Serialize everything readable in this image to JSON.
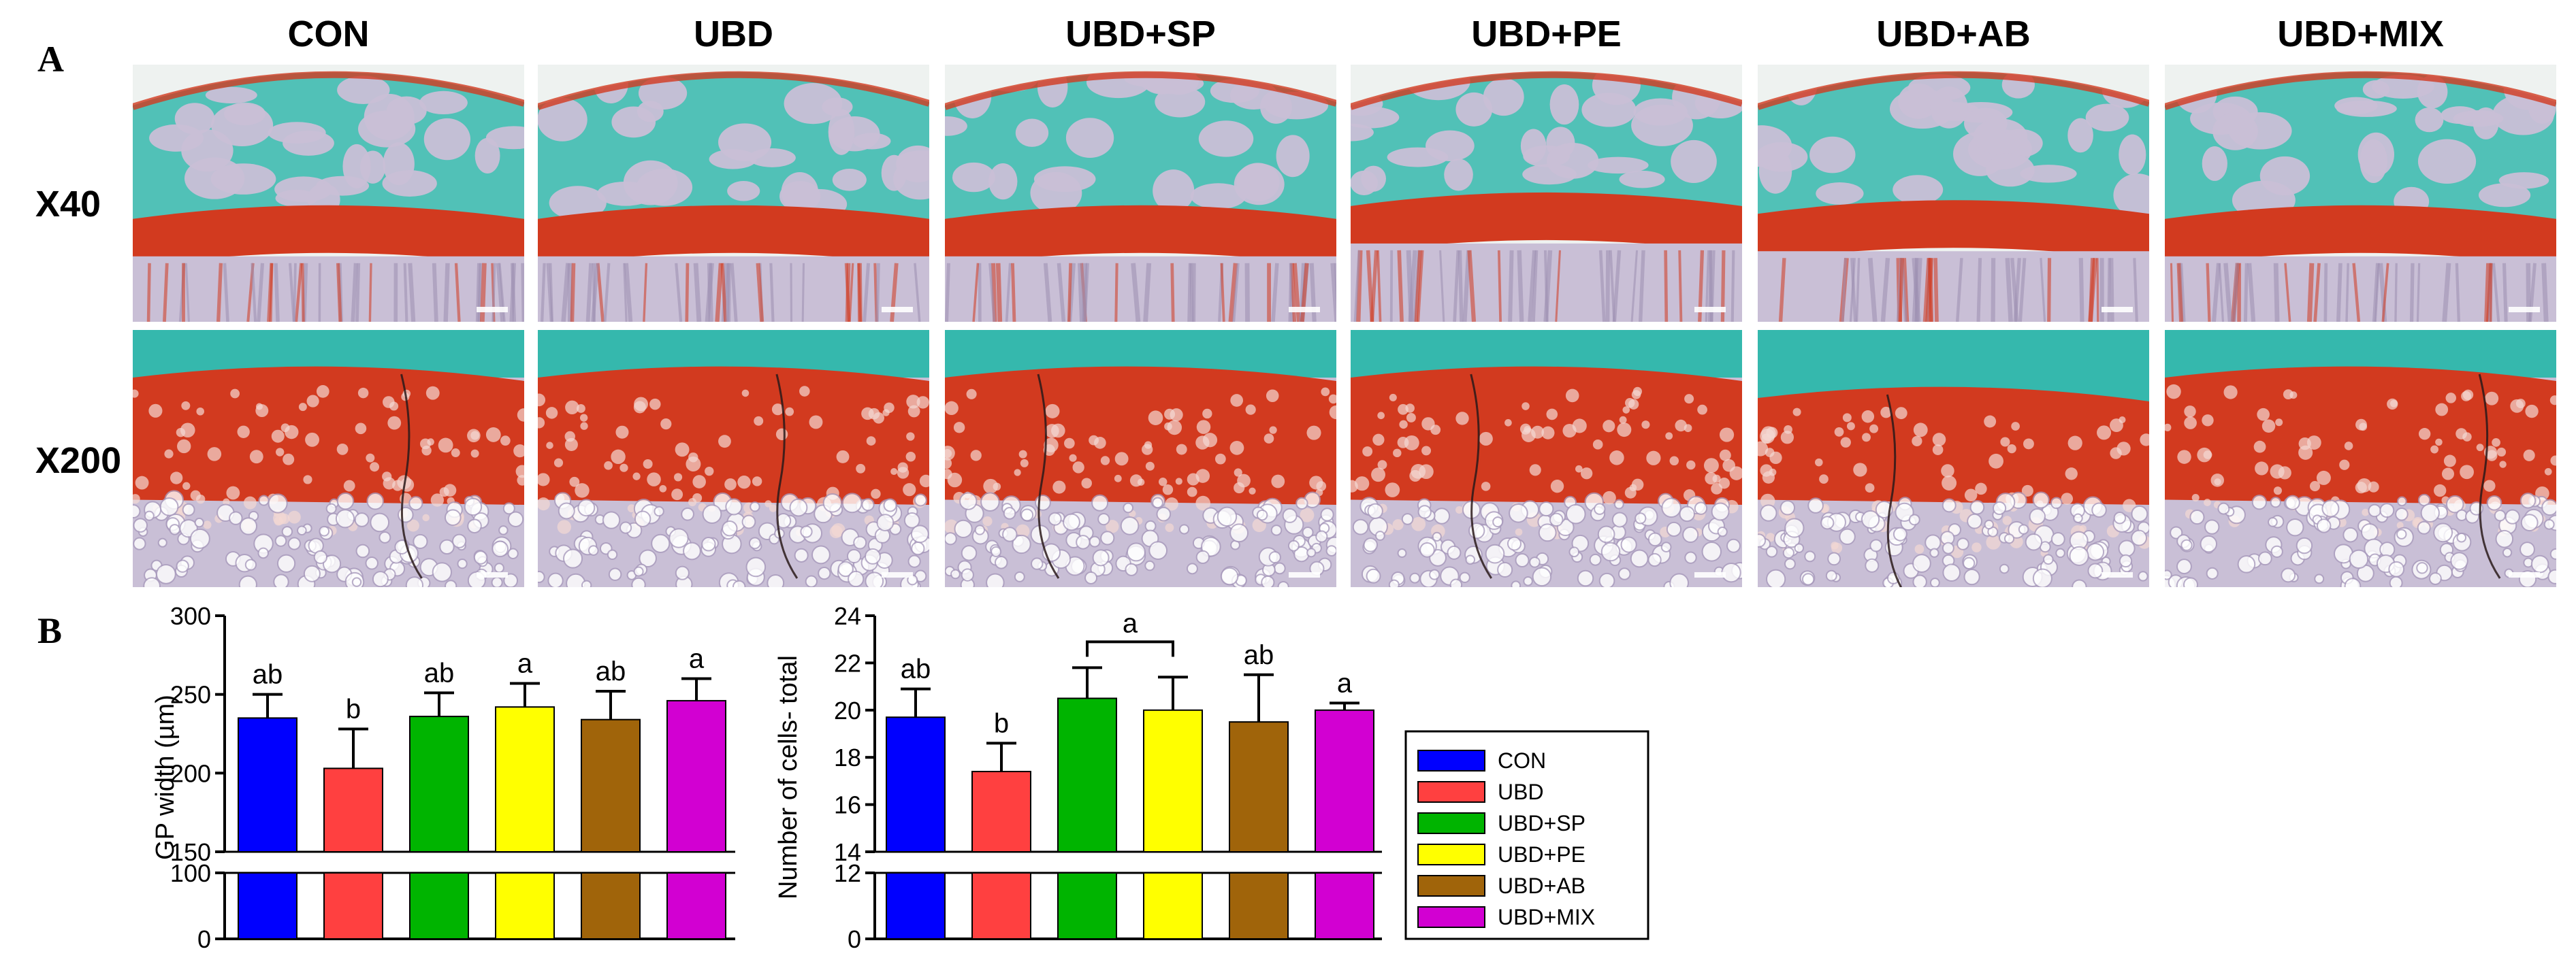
{
  "panel_a": {
    "label": "A",
    "column_titles": [
      "CON",
      "UBD",
      "UBD+SP",
      "UBD+PE",
      "UBD+AB",
      "UBD+MIX"
    ],
    "row_labels": [
      "X40",
      "X200"
    ],
    "stain_colors": {
      "cartilage_red": "#d23a1f",
      "bone_teal": "#35b8ad",
      "marrow_lavender": "#c9bfd6",
      "paper": "#eef2f0"
    }
  },
  "panel_b": {
    "label": "B",
    "legend": {
      "placement": "right",
      "entries": [
        "CON",
        "UBD",
        "UBD+SP",
        "UBD+PE",
        "UBD+AB",
        "UBD+MIX"
      ]
    }
  },
  "colors": {
    "CON": "#0000ff",
    "UBD": "#ff4040",
    "UBD+SP": "#00b400",
    "UBD+PE": "#ffff00",
    "UBD+AB": "#a0640a",
    "UBD+MIX": "#d200d2"
  },
  "chart_data": [
    {
      "type": "bar",
      "ylabel": "GP width (µm)",
      "categories": [
        "CON",
        "UBD",
        "UBD+SP",
        "UBD+PE",
        "UBD+AB",
        "UBD+MIX"
      ],
      "values": [
        235,
        203,
        236,
        242,
        234,
        246
      ],
      "errors": [
        15,
        25,
        15,
        15,
        18,
        14
      ],
      "significance_letters": [
        "ab",
        "b",
        "ab",
        "a",
        "ab",
        "a"
      ],
      "axis_break": true,
      "ylim_lower": [
        0,
        100
      ],
      "ylim_upper": [
        150,
        300
      ],
      "yticks_lower": [
        "0",
        "100"
      ],
      "yticks_upper": [
        "150",
        "200",
        "250",
        "300"
      ],
      "grid": false
    },
    {
      "type": "bar",
      "ylabel": "Number of cells- total",
      "categories": [
        "CON",
        "UBD",
        "UBD+SP",
        "UBD+PE",
        "UBD+AB",
        "UBD+MIX"
      ],
      "values": [
        19.7,
        17.4,
        20.5,
        20.0,
        19.5,
        20.0
      ],
      "errors": [
        1.2,
        1.2,
        1.3,
        1.4,
        2.0,
        0.3
      ],
      "significance_letters": [
        "ab",
        "b",
        "",
        "",
        "ab",
        "a"
      ],
      "bracket": {
        "from": "UBD+SP",
        "to": "UBD+PE",
        "label": "a"
      },
      "axis_break": true,
      "ylim_lower": [
        0,
        12
      ],
      "ylim_upper": [
        14,
        24
      ],
      "yticks_lower": [
        "0",
        "12"
      ],
      "yticks_upper": [
        "14",
        "16",
        "18",
        "20",
        "22",
        "24"
      ],
      "grid": false
    }
  ]
}
